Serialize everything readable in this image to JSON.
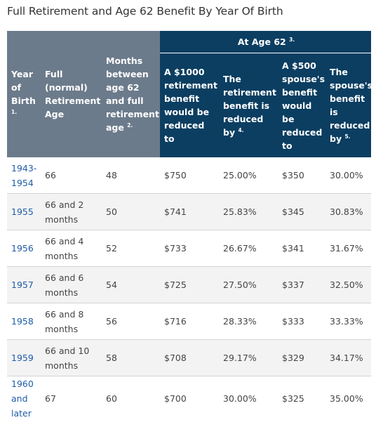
{
  "title": "Full Retirement and Age 62 Benefit By Year Of Birth",
  "headers": {
    "year": "Year of Birth",
    "year_note": "1.",
    "fra": "Full (normal) Retirement Age",
    "months": "Months between age 62 and full retirement age",
    "months_note": "2.",
    "at62": "At Age 62",
    "at62_note": "3.",
    "benefit1000": "A $1000 retirement benefit would be reduced to",
    "retire_pct": "The retirement benefit is reduced by",
    "retire_pct_note": "4.",
    "spouse500": "A $500 spouse's benefit would be reduced to",
    "spouse_pct": "The spouse's benefit is reduced by",
    "spouse_pct_note": "5."
  },
  "rows": [
    {
      "year": "1943-1954",
      "fra": "66",
      "months": "48",
      "benefit1000": "$750",
      "retire_pct": "25.00%",
      "spouse500": "$350",
      "spouse_pct": "30.00%"
    },
    {
      "year": "1955",
      "fra": "66 and 2 months",
      "months": "50",
      "benefit1000": "$741",
      "retire_pct": "25.83%",
      "spouse500": "$345",
      "spouse_pct": "30.83%"
    },
    {
      "year": "1956",
      "fra": "66 and 4 months",
      "months": "52",
      "benefit1000": "$733",
      "retire_pct": "26.67%",
      "spouse500": "$341",
      "spouse_pct": "31.67%"
    },
    {
      "year": "1957",
      "fra": "66 and 6 months",
      "months": "54",
      "benefit1000": "$725",
      "retire_pct": "27.50%",
      "spouse500": "$337",
      "spouse_pct": "32.50%"
    },
    {
      "year": "1958",
      "fra": "66 and 8 months",
      "months": "56",
      "benefit1000": "$716",
      "retire_pct": "28.33%",
      "spouse500": "$333",
      "spouse_pct": "33.33%"
    },
    {
      "year": "1959",
      "fra": "66 and 10 months",
      "months": "58",
      "benefit1000": "$708",
      "retire_pct": "29.17%",
      "spouse500": "$329",
      "spouse_pct": "34.17%"
    },
    {
      "year": "1960 and later",
      "fra": "67",
      "months": "60",
      "benefit1000": "$700",
      "retire_pct": "30.00%",
      "spouse500": "$325",
      "spouse_pct": "35.00%"
    }
  ],
  "colors": {
    "header_gray": "#6c7b8b",
    "header_navy": "#0b3e61",
    "link_blue": "#1f5ca8",
    "row_alt": "#f3f3f3"
  }
}
